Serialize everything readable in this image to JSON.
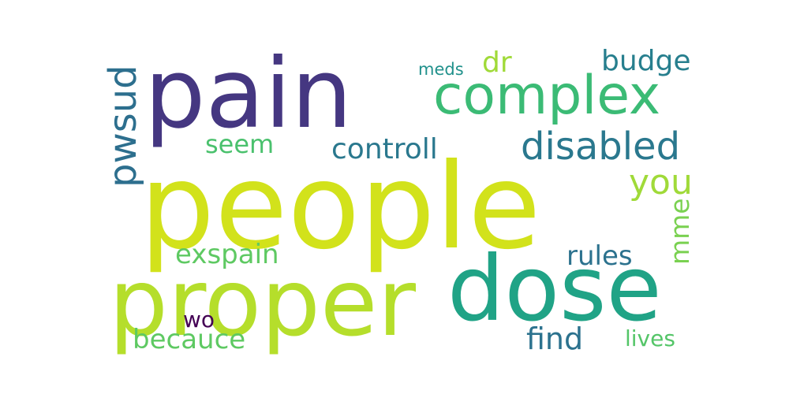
{
  "word_cloud": {
    "words": [
      {
        "text": "people",
        "color": "#d2e21b"
      },
      {
        "text": "pain",
        "color": "#453781"
      },
      {
        "text": "proper",
        "color": "#b5de2b"
      },
      {
        "text": "dose",
        "color": "#20a386"
      },
      {
        "text": "complex",
        "color": "#3bbb75"
      },
      {
        "text": "disabled",
        "color": "#2a788e"
      },
      {
        "text": "pwsud",
        "color": "#2d6f8e"
      },
      {
        "text": "controll",
        "color": "#2a788e"
      },
      {
        "text": "seem",
        "color": "#4ac16d"
      },
      {
        "text": "dr",
        "color": "#a0da39"
      },
      {
        "text": "budge",
        "color": "#277f8e"
      },
      {
        "text": "meds",
        "color": "#21918c"
      },
      {
        "text": "you",
        "color": "#a0da39"
      },
      {
        "text": "mme",
        "color": "#7ad151"
      },
      {
        "text": "exspain",
        "color": "#5ec962"
      },
      {
        "text": "rules",
        "color": "#2c728e"
      },
      {
        "text": "wo",
        "color": "#440154"
      },
      {
        "text": "becauce",
        "color": "#5ec962"
      },
      {
        "text": "find",
        "color": "#2c728e"
      },
      {
        "text": "lives",
        "color": "#54c568"
      }
    ]
  }
}
